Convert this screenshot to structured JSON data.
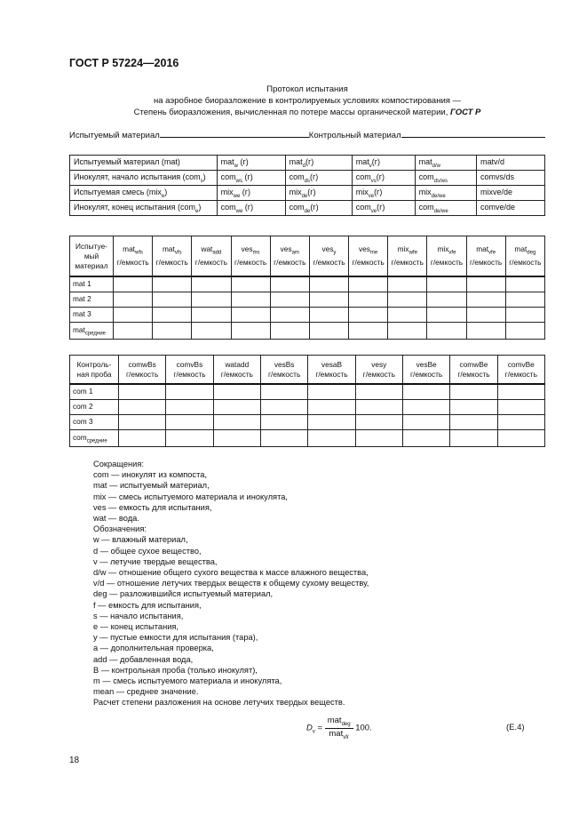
{
  "doc_title": "ГОСТ Р 57224—2016",
  "header": {
    "line1": "Протокол испытания",
    "line2": "на аэробное биоразложение в контролируемых условиях компостирования —",
    "line3": "Степень биоразложения, вычисленная по потере массы органической материи,",
    "line3_bold": "ГОСТ Р"
  },
  "materials": {
    "test_label": "Испытуемый материал",
    "control_label": "Контрольный материал"
  },
  "table1": [
    {
      "label": "Испытуемый материал (mat)",
      "label_sub": "",
      "label_end": "",
      "cells": [
        [
          "mat",
          "w",
          " (г)"
        ],
        [
          "mat",
          "d",
          "(г)"
        ],
        [
          "mat",
          "v",
          "(г)"
        ],
        [
          "mat",
          "d/w",
          ""
        ],
        [
          "matv/d",
          "",
          ""
        ]
      ]
    },
    {
      "label": "Инокулят, начало испытания (com",
      "label_sub": "s",
      "label_end": ")",
      "cells": [
        [
          "com",
          "ws",
          " (г)"
        ],
        [
          "com",
          "ds",
          "(г)"
        ],
        [
          "com",
          "vs",
          "(г)"
        ],
        [
          "com",
          "ds/ws",
          ""
        ],
        [
          "comvs/ds",
          "",
          ""
        ]
      ]
    },
    {
      "label": "Испытуемая смесь (mix",
      "label_sub": "e",
      "label_end": ")",
      "cells": [
        [
          "mix",
          "we",
          " (г)"
        ],
        [
          "mix",
          "de",
          "(г)"
        ],
        [
          "mix",
          "ve",
          "(г)"
        ],
        [
          "mix",
          "de/we",
          ""
        ],
        [
          "mixve/de",
          "",
          ""
        ]
      ]
    },
    {
      "label": "Инокулят, конец испытания (com",
      "label_sub": "e",
      "label_end": ")",
      "cells": [
        [
          "com",
          "we",
          " (г)"
        ],
        [
          "com",
          "de",
          "(г)"
        ],
        [
          "com",
          "ve",
          "(г)"
        ],
        [
          "com",
          "de/we",
          ""
        ],
        [
          "comve/de",
          "",
          ""
        ]
      ]
    }
  ],
  "table2": {
    "first_header": "Испытуе-мый материал",
    "unit": "г/емкость",
    "headers": [
      [
        "mat",
        "wfs"
      ],
      [
        "mat",
        "vfs"
      ],
      [
        "wat",
        "add"
      ],
      [
        "ves",
        "ms"
      ],
      [
        "ves",
        "am"
      ],
      [
        "ves",
        "y"
      ],
      [
        "ves",
        "me"
      ],
      [
        "mix",
        "wfe"
      ],
      [
        "mix",
        "vfe"
      ],
      [
        "mat",
        "vfe"
      ],
      [
        "mat",
        "deg"
      ]
    ],
    "rows": [
      [
        "mat 1",
        ""
      ],
      [
        "mat 2",
        ""
      ],
      [
        "mat 3",
        ""
      ],
      [
        "mat",
        "средние"
      ]
    ]
  },
  "table3": {
    "first_header": "Контроль-ная проба",
    "unit": "г/емкость",
    "headers": [
      "comwBs",
      "comvBs",
      "watadd",
      "vesBs",
      "vesaB",
      "vesy",
      "vesBe",
      "comwBe",
      "comvBe"
    ],
    "rows": [
      [
        "com 1",
        ""
      ],
      [
        "com 2",
        ""
      ],
      [
        "com 3",
        ""
      ],
      [
        "com",
        "средние"
      ]
    ]
  },
  "notes": [
    "Сокращения:",
    "com — инокулят из компоста,",
    "mat — испытуемый материал,",
    "mix — смесь испытуемого материала и инокулята,",
    "ves — емкость для испытания,",
    "wat — вода.",
    "Обозначения:",
    "w — влажный материал,",
    "d — общее сухое вещество,",
    "v — летучие твердые вещества,",
    "d/w — отношение общего сухого вещества к массе влажного вещества,",
    "v/d — отношение летучих твердых веществ к общему сухому веществу,",
    "deg — разложившийся испытуемый материал,",
    "f — емкость для испытания,",
    "s — начало испытания,",
    "e — конец испытания,",
    "y — пустые емкости для испытания (тара),",
    "a — дополнительная проверка,",
    "add — добавленная вода,",
    "B — контрольная проба (только инокулят),",
    "m — смесь испытуемого материала и инокулята,",
    "mean — среднее значение.",
    "Расчет степени разложения на основе летучих твердых веществ."
  ],
  "formula": {
    "lhs": "D",
    "lhs_sub": "v",
    "eq": "=",
    "num": "mat",
    "num_sub": "deg",
    "den": "mat",
    "den_sub": "vfr",
    "factor": "100.",
    "number": "(E.4)"
  },
  "page_number": "18"
}
